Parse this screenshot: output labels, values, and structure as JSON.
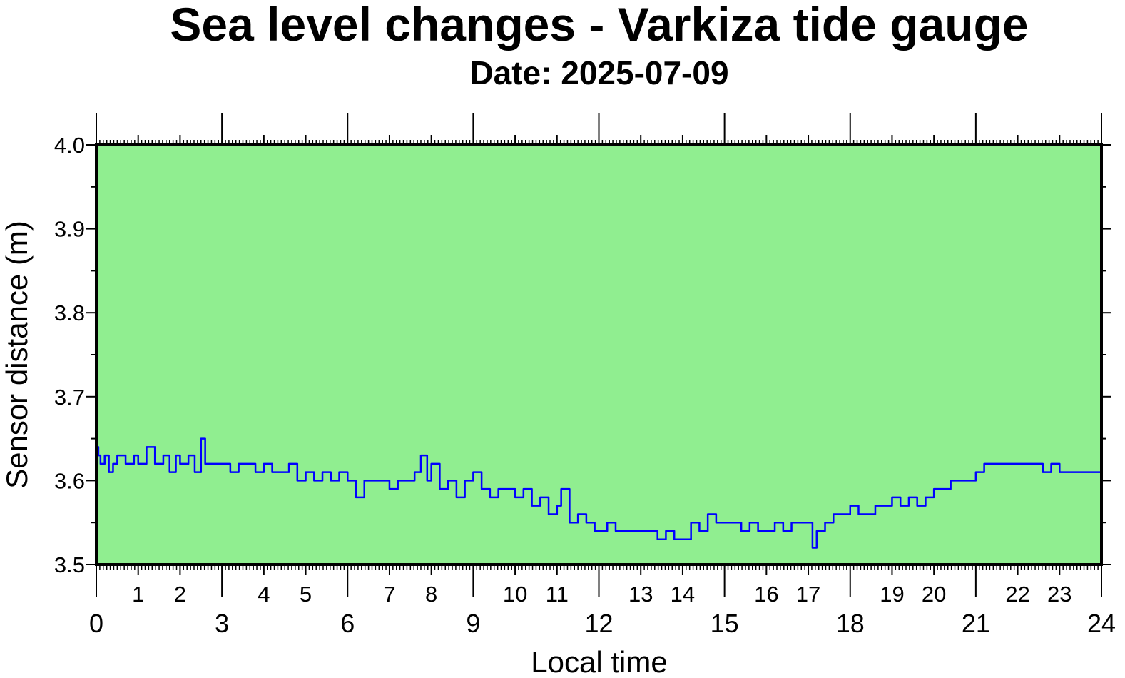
{
  "chart_data": {
    "type": "line",
    "title": "Sea level changes - Varkiza tide gauge",
    "subtitle": "Date: 2025-07-09",
    "xlabel": "Local time",
    "ylabel": "Sensor distance (m)",
    "xlim": [
      0,
      24
    ],
    "ylim": [
      3.5,
      4.0
    ],
    "y_ticks": [
      "3.5",
      "3.6",
      "3.7",
      "3.8",
      "3.9",
      "4.0"
    ],
    "x_major_ticks": [
      "0",
      "3",
      "6",
      "9",
      "12",
      "15",
      "18",
      "21",
      "24"
    ],
    "x_minor_labels": [
      "1",
      "2",
      "4",
      "5",
      "7",
      "8",
      "10",
      "11",
      "13",
      "14",
      "16",
      "17",
      "19",
      "20",
      "22",
      "23"
    ],
    "grid": false,
    "legend": "none",
    "colors": {
      "plot_background": "#90ee90",
      "series_line": "#0000ff",
      "frame": "#000000"
    },
    "series": [
      {
        "values": [
          [
            0.0,
            3.64
          ],
          [
            0.05,
            3.63
          ],
          [
            0.1,
            3.62
          ],
          [
            0.2,
            3.63
          ],
          [
            0.3,
            3.61
          ],
          [
            0.4,
            3.62
          ],
          [
            0.5,
            3.63
          ],
          [
            0.7,
            3.62
          ],
          [
            0.9,
            3.63
          ],
          [
            1.0,
            3.62
          ],
          [
            1.2,
            3.64
          ],
          [
            1.4,
            3.62
          ],
          [
            1.6,
            3.63
          ],
          [
            1.75,
            3.61
          ],
          [
            1.9,
            3.63
          ],
          [
            2.0,
            3.62
          ],
          [
            2.2,
            3.63
          ],
          [
            2.35,
            3.61
          ],
          [
            2.5,
            3.65
          ],
          [
            2.6,
            3.62
          ],
          [
            2.8,
            3.62
          ],
          [
            3.0,
            3.62
          ],
          [
            3.2,
            3.61
          ],
          [
            3.4,
            3.62
          ],
          [
            3.6,
            3.62
          ],
          [
            3.8,
            3.61
          ],
          [
            4.0,
            3.62
          ],
          [
            4.2,
            3.61
          ],
          [
            4.4,
            3.61
          ],
          [
            4.6,
            3.62
          ],
          [
            4.8,
            3.6
          ],
          [
            5.0,
            3.61
          ],
          [
            5.2,
            3.6
          ],
          [
            5.4,
            3.61
          ],
          [
            5.6,
            3.6
          ],
          [
            5.8,
            3.61
          ],
          [
            6.0,
            3.6
          ],
          [
            6.2,
            3.58
          ],
          [
            6.4,
            3.6
          ],
          [
            6.6,
            3.6
          ],
          [
            6.8,
            3.6
          ],
          [
            7.0,
            3.59
          ],
          [
            7.2,
            3.6
          ],
          [
            7.4,
            3.6
          ],
          [
            7.6,
            3.61
          ],
          [
            7.75,
            3.63
          ],
          [
            7.9,
            3.6
          ],
          [
            8.0,
            3.62
          ],
          [
            8.2,
            3.59
          ],
          [
            8.4,
            3.6
          ],
          [
            8.6,
            3.58
          ],
          [
            8.8,
            3.6
          ],
          [
            9.0,
            3.61
          ],
          [
            9.2,
            3.59
          ],
          [
            9.4,
            3.58
          ],
          [
            9.6,
            3.59
          ],
          [
            9.8,
            3.59
          ],
          [
            10.0,
            3.58
          ],
          [
            10.2,
            3.59
          ],
          [
            10.4,
            3.57
          ],
          [
            10.6,
            3.58
          ],
          [
            10.8,
            3.56
          ],
          [
            11.0,
            3.57
          ],
          [
            11.1,
            3.59
          ],
          [
            11.3,
            3.55
          ],
          [
            11.5,
            3.56
          ],
          [
            11.7,
            3.55
          ],
          [
            11.9,
            3.54
          ],
          [
            12.0,
            3.54
          ],
          [
            12.2,
            3.55
          ],
          [
            12.4,
            3.54
          ],
          [
            12.6,
            3.54
          ],
          [
            12.8,
            3.54
          ],
          [
            13.0,
            3.54
          ],
          [
            13.2,
            3.54
          ],
          [
            13.4,
            3.53
          ],
          [
            13.6,
            3.54
          ],
          [
            13.8,
            3.53
          ],
          [
            14.0,
            3.53
          ],
          [
            14.2,
            3.55
          ],
          [
            14.4,
            3.54
          ],
          [
            14.6,
            3.56
          ],
          [
            14.8,
            3.55
          ],
          [
            15.0,
            3.55
          ],
          [
            15.2,
            3.55
          ],
          [
            15.4,
            3.54
          ],
          [
            15.6,
            3.55
          ],
          [
            15.8,
            3.54
          ],
          [
            16.0,
            3.54
          ],
          [
            16.2,
            3.55
          ],
          [
            16.4,
            3.54
          ],
          [
            16.6,
            3.55
          ],
          [
            16.8,
            3.55
          ],
          [
            17.0,
            3.55
          ],
          [
            17.1,
            3.52
          ],
          [
            17.2,
            3.54
          ],
          [
            17.4,
            3.55
          ],
          [
            17.6,
            3.56
          ],
          [
            17.8,
            3.56
          ],
          [
            18.0,
            3.57
          ],
          [
            18.2,
            3.56
          ],
          [
            18.4,
            3.56
          ],
          [
            18.6,
            3.57
          ],
          [
            18.8,
            3.57
          ],
          [
            19.0,
            3.58
          ],
          [
            19.2,
            3.57
          ],
          [
            19.4,
            3.58
          ],
          [
            19.6,
            3.57
          ],
          [
            19.8,
            3.58
          ],
          [
            20.0,
            3.59
          ],
          [
            20.2,
            3.59
          ],
          [
            20.4,
            3.6
          ],
          [
            20.6,
            3.6
          ],
          [
            20.8,
            3.6
          ],
          [
            21.0,
            3.61
          ],
          [
            21.2,
            3.62
          ],
          [
            21.4,
            3.62
          ],
          [
            21.6,
            3.62
          ],
          [
            21.8,
            3.62
          ],
          [
            22.0,
            3.62
          ],
          [
            22.2,
            3.62
          ],
          [
            22.4,
            3.62
          ],
          [
            22.6,
            3.61
          ],
          [
            22.8,
            3.62
          ],
          [
            23.0,
            3.61
          ],
          [
            23.2,
            3.61
          ],
          [
            23.4,
            3.61
          ],
          [
            23.6,
            3.61
          ],
          [
            23.8,
            3.61
          ],
          [
            24.0,
            3.6
          ]
        ]
      }
    ]
  }
}
